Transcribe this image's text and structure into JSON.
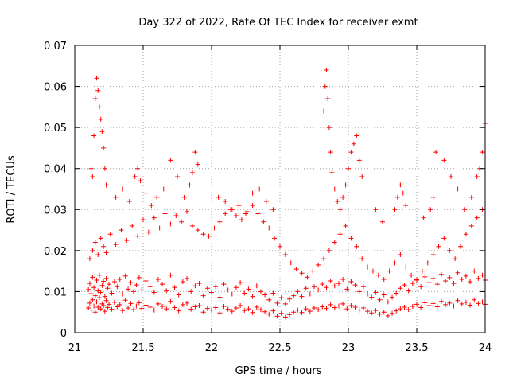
{
  "chart_data": {
    "type": "scatter",
    "title": "Day 322 of 2022, Rate Of TEC Index for receiver exmt",
    "xlabel": "GPS time / hours",
    "ylabel": "ROTI / TECUs",
    "xlim": [
      21,
      24
    ],
    "ylim": [
      0,
      0.07
    ],
    "xticks": [
      21,
      21.5,
      22,
      22.5,
      23,
      23.5,
      24
    ],
    "xtick_labels": [
      "21",
      "21.5",
      "22",
      "22.5",
      "23",
      "23.5",
      "24"
    ],
    "yticks": [
      0,
      0.01,
      0.02,
      0.03,
      0.04,
      0.05,
      0.06,
      0.07
    ],
    "ytick_labels": [
      "0",
      "0.01",
      "0.02",
      "0.03",
      "0.04",
      "0.05",
      "0.06",
      "0.07"
    ],
    "grid": true,
    "marker": "plus",
    "color": "#ff0000",
    "series": [
      {
        "name": "ROTI",
        "x": [
          21.1,
          21.11,
          21.12,
          21.13,
          21.14,
          21.15,
          21.16,
          21.17,
          21.18,
          21.19,
          21.2,
          21.21,
          21.22,
          21.23,
          21.24,
          21.25,
          21.27,
          21.29,
          21.31,
          21.33,
          21.35,
          21.37,
          21.39,
          21.41,
          21.43,
          21.45,
          21.47,
          21.49,
          21.52,
          21.55,
          21.58,
          21.61,
          21.64,
          21.67,
          21.7,
          21.73,
          21.76,
          21.79,
          21.82,
          21.85,
          21.88,
          21.91,
          21.94,
          21.97,
          22.0,
          22.03,
          22.06,
          22.09,
          22.12,
          22.15,
          22.18,
          22.21,
          22.24,
          22.27,
          22.3,
          22.33,
          22.36,
          22.39,
          22.42,
          22.45,
          22.48,
          22.51,
          22.54,
          22.57,
          22.6,
          22.63,
          22.66,
          22.69,
          22.72,
          22.75,
          22.78,
          22.81,
          22.84,
          22.87,
          22.9,
          22.93,
          22.96,
          22.99,
          23.02,
          23.05,
          23.08,
          23.11,
          23.14,
          23.17,
          23.2,
          23.23,
          23.26,
          23.29,
          23.32,
          23.35,
          23.38,
          23.41,
          23.44,
          23.47,
          23.5,
          23.53,
          23.56,
          23.59,
          23.62,
          23.65,
          23.68,
          23.71,
          23.74,
          23.77,
          23.8,
          23.83,
          23.86,
          23.89,
          23.92,
          23.95,
          23.98,
          24.0,
          21.1,
          21.11,
          21.12,
          21.13,
          21.14,
          21.15,
          21.16,
          21.17,
          21.18,
          21.19,
          21.2,
          21.21,
          21.22,
          21.23,
          21.24,
          21.25,
          21.27,
          21.29,
          21.31,
          21.33,
          21.35,
          21.37,
          21.39,
          21.41,
          21.43,
          21.45,
          21.47,
          21.49,
          21.52,
          21.55,
          21.58,
          21.61,
          21.64,
          21.67,
          21.7,
          21.73,
          21.76,
          21.79,
          21.82,
          21.85,
          21.88,
          21.91,
          21.94,
          21.97,
          22.0,
          22.03,
          22.06,
          22.09,
          22.12,
          22.15,
          22.18,
          22.21,
          22.24,
          22.27,
          22.3,
          22.33,
          22.36,
          22.39,
          22.42,
          22.45,
          22.48,
          22.51,
          22.54,
          22.57,
          22.6,
          22.63,
          22.66,
          22.69,
          22.72,
          22.75,
          22.78,
          22.81,
          22.84,
          22.87,
          22.9,
          22.93,
          22.96,
          22.99,
          23.02,
          23.05,
          23.08,
          23.11,
          23.14,
          23.17,
          23.2,
          23.23,
          23.26,
          23.29,
          23.32,
          23.35,
          23.38,
          23.41,
          23.44,
          23.47,
          23.5,
          23.53,
          23.56,
          23.59,
          23.62,
          23.65,
          23.68,
          23.71,
          23.74,
          23.77,
          23.8,
          23.83,
          23.86,
          23.89,
          23.92,
          23.95,
          23.98,
          24.0,
          21.11,
          21.13,
          21.15,
          21.17,
          21.19,
          21.21,
          21.23,
          21.26,
          21.3,
          21.34,
          21.38,
          21.42,
          21.46,
          21.5,
          21.54,
          21.58,
          21.62,
          21.66,
          21.7,
          21.74,
          21.78,
          21.82,
          21.86,
          21.9,
          21.94,
          21.98,
          22.02,
          22.06,
          22.1,
          22.14,
          22.18,
          22.22,
          22.26,
          22.3,
          22.34,
          22.38,
          22.42,
          22.46,
          22.5,
          22.54,
          22.58,
          22.62,
          22.66,
          22.7,
          22.74,
          22.78,
          22.82,
          22.86,
          22.9,
          22.94,
          22.98,
          23.02,
          23.06,
          23.1,
          23.14,
          23.18,
          23.22,
          23.26,
          23.3,
          23.34,
          23.38,
          23.42,
          23.46,
          23.5,
          23.54,
          23.58,
          23.62,
          23.66,
          23.7,
          23.74,
          23.78,
          23.82,
          23.86,
          23.9,
          23.94,
          23.98,
          21.14,
          21.15,
          21.16,
          21.17,
          21.18,
          21.19,
          21.2,
          21.21,
          21.22,
          21.23,
          21.13,
          21.12,
          21.3,
          21.35,
          21.4,
          21.44,
          21.46,
          21.48,
          21.52,
          21.56,
          21.6,
          21.65,
          21.7,
          21.75,
          21.8,
          21.84,
          21.86,
          21.88,
          21.9,
          22.05,
          22.1,
          22.15,
          22.2,
          22.25,
          22.3,
          22.35,
          22.4,
          22.45,
          22.82,
          22.83,
          22.84,
          22.85,
          22.86,
          22.87,
          22.88,
          22.9,
          22.92,
          22.94,
          22.96,
          22.98,
          23.0,
          23.02,
          23.04,
          23.06,
          23.08,
          23.1,
          23.2,
          23.25,
          23.34,
          23.36,
          23.38,
          23.4,
          23.42,
          23.55,
          23.6,
          23.62,
          23.64,
          23.7,
          23.75,
          23.8,
          23.85,
          23.9,
          23.94,
          23.96,
          23.98,
          24.0
        ],
        "y": [
          0.006,
          0.0072,
          0.0055,
          0.008,
          0.0065,
          0.005,
          0.0075,
          0.0062,
          0.0085,
          0.0058,
          0.007,
          0.0066,
          0.0052,
          0.0078,
          0.0061,
          0.0069,
          0.0057,
          0.0074,
          0.0063,
          0.0068,
          0.0054,
          0.0079,
          0.006,
          0.0071,
          0.0056,
          0.0065,
          0.0073,
          0.0059,
          0.0067,
          0.0062,
          0.0055,
          0.007,
          0.0064,
          0.0058,
          0.0076,
          0.0061,
          0.0053,
          0.0068,
          0.0072,
          0.0057,
          0.0063,
          0.0066,
          0.005,
          0.0059,
          0.0055,
          0.0061,
          0.0048,
          0.0064,
          0.0057,
          0.0052,
          0.006,
          0.0066,
          0.0054,
          0.0058,
          0.0049,
          0.0062,
          0.0056,
          0.0051,
          0.0045,
          0.0053,
          0.004,
          0.0047,
          0.0038,
          0.0044,
          0.005,
          0.0055,
          0.0049,
          0.0058,
          0.0052,
          0.006,
          0.0056,
          0.0063,
          0.0059,
          0.0068,
          0.0061,
          0.0065,
          0.007,
          0.0058,
          0.0066,
          0.0062,
          0.0055,
          0.006,
          0.0052,
          0.0048,
          0.0054,
          0.0045,
          0.005,
          0.0041,
          0.0047,
          0.0053,
          0.0058,
          0.0062,
          0.0056,
          0.0064,
          0.0069,
          0.0061,
          0.0073,
          0.0066,
          0.0071,
          0.0063,
          0.0076,
          0.0068,
          0.0072,
          0.0065,
          0.0078,
          0.007,
          0.0074,
          0.0067,
          0.008,
          0.0071,
          0.0075,
          0.0069,
          0.0105,
          0.012,
          0.0095,
          0.0135,
          0.011,
          0.009,
          0.0128,
          0.0102,
          0.014,
          0.0098,
          0.0115,
          0.0125,
          0.0088,
          0.0132,
          0.0108,
          0.0118,
          0.0096,
          0.0124,
          0.0112,
          0.013,
          0.0094,
          0.0138,
          0.0106,
          0.0122,
          0.01,
          0.0116,
          0.0134,
          0.0104,
          0.0126,
          0.0112,
          0.0098,
          0.013,
          0.0118,
          0.0102,
          0.014,
          0.011,
          0.0092,
          0.0124,
          0.0132,
          0.01,
          0.0114,
          0.012,
          0.009,
          0.0108,
          0.0098,
          0.0112,
          0.0086,
          0.0118,
          0.0104,
          0.0094,
          0.011,
          0.0122,
          0.0096,
          0.0106,
          0.0088,
          0.0114,
          0.01,
          0.0092,
          0.008,
          0.0096,
          0.0072,
          0.0085,
          0.007,
          0.0082,
          0.009,
          0.01,
          0.0088,
          0.0108,
          0.0094,
          0.0112,
          0.0104,
          0.0118,
          0.011,
          0.0126,
          0.0114,
          0.012,
          0.013,
          0.0106,
          0.0124,
          0.0116,
          0.01,
          0.0112,
          0.0094,
          0.0086,
          0.0098,
          0.008,
          0.0092,
          0.0075,
          0.0086,
          0.0096,
          0.0108,
          0.0116,
          0.0102,
          0.012,
          0.0128,
          0.0112,
          0.0136,
          0.0122,
          0.0132,
          0.0118,
          0.0142,
          0.0126,
          0.0134,
          0.012,
          0.0146,
          0.013,
          0.0138,
          0.0124,
          0.015,
          0.0132,
          0.014,
          0.0128,
          0.018,
          0.02,
          0.022,
          0.019,
          0.023,
          0.021,
          0.0195,
          0.024,
          0.0215,
          0.025,
          0.0225,
          0.026,
          0.0235,
          0.0275,
          0.0245,
          0.028,
          0.0255,
          0.029,
          0.0265,
          0.0285,
          0.027,
          0.0295,
          0.026,
          0.025,
          0.024,
          0.0235,
          0.0255,
          0.027,
          0.029,
          0.03,
          0.0285,
          0.0275,
          0.0295,
          0.031,
          0.029,
          0.027,
          0.0255,
          0.023,
          0.021,
          0.019,
          0.017,
          0.0155,
          0.0145,
          0.0135,
          0.015,
          0.0165,
          0.018,
          0.02,
          0.022,
          0.024,
          0.026,
          0.023,
          0.021,
          0.018,
          0.016,
          0.015,
          0.014,
          0.013,
          0.015,
          0.017,
          0.019,
          0.016,
          0.014,
          0.013,
          0.015,
          0.017,
          0.019,
          0.021,
          0.023,
          0.02,
          0.018,
          0.021,
          0.024,
          0.026,
          0.028,
          0.03,
          0.048,
          0.057,
          0.062,
          0.059,
          0.055,
          0.052,
          0.049,
          0.045,
          0.04,
          0.036,
          0.038,
          0.04,
          0.033,
          0.035,
          0.032,
          0.038,
          0.04,
          0.037,
          0.034,
          0.031,
          0.033,
          0.035,
          0.042,
          0.038,
          0.033,
          0.036,
          0.039,
          0.044,
          0.041,
          0.033,
          0.032,
          0.03,
          0.031,
          0.029,
          0.034,
          0.035,
          0.032,
          0.03,
          0.054,
          0.06,
          0.064,
          0.057,
          0.05,
          0.044,
          0.039,
          0.035,
          0.032,
          0.03,
          0.033,
          0.036,
          0.04,
          0.044,
          0.046,
          0.048,
          0.042,
          0.038,
          0.03,
          0.027,
          0.03,
          0.033,
          0.036,
          0.034,
          0.031,
          0.028,
          0.03,
          0.033,
          0.044,
          0.042,
          0.038,
          0.035,
          0.03,
          0.033,
          0.038,
          0.04,
          0.044,
          0.051
        ]
      }
    ]
  }
}
